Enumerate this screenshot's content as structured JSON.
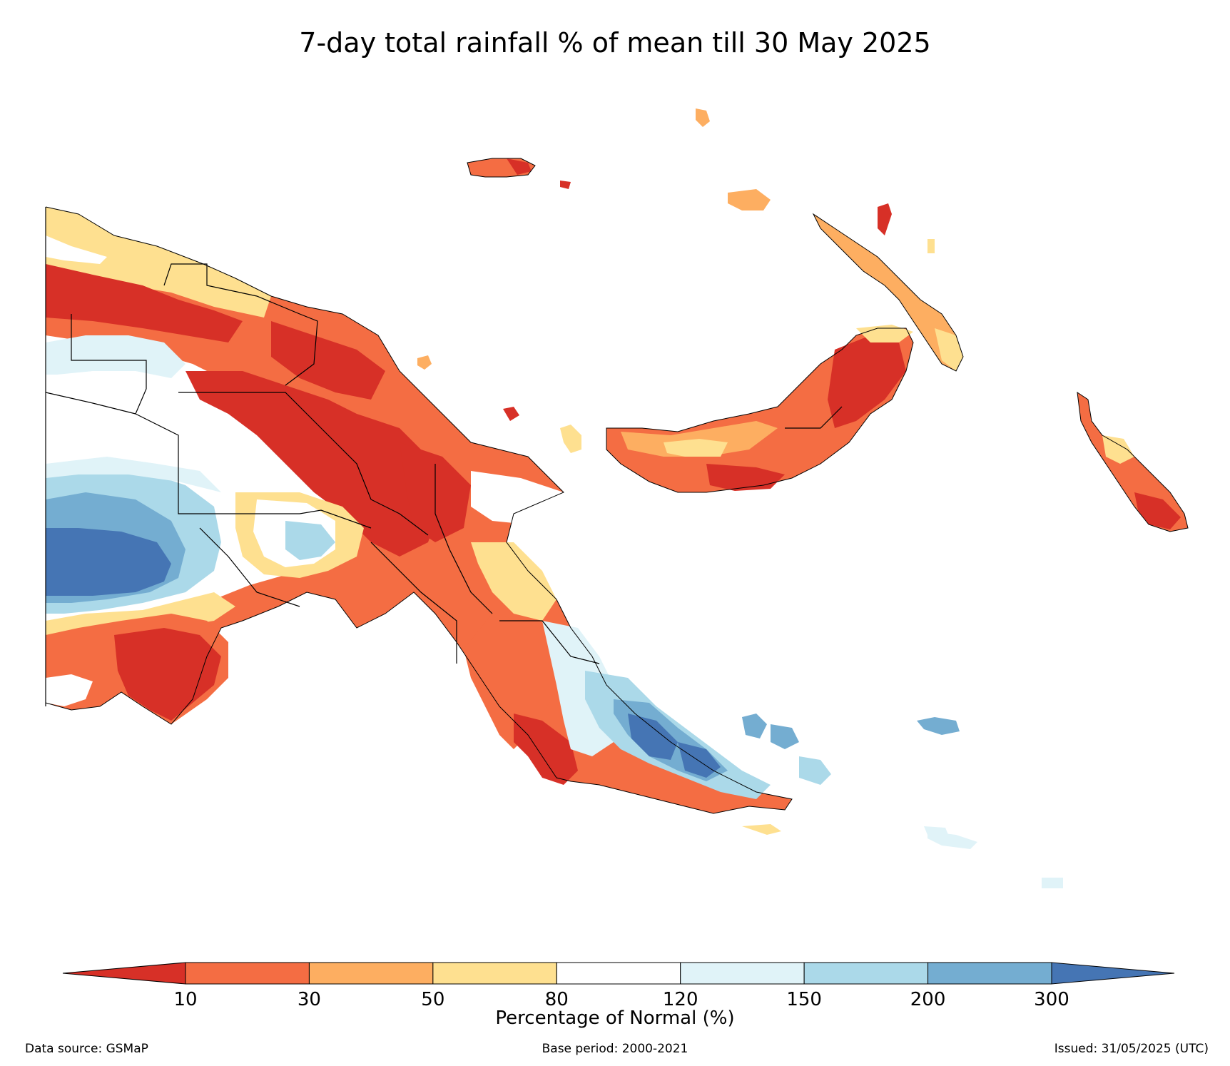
{
  "title": "7-day total rainfall % of mean till 30 May 2025",
  "colorbar": {
    "label": "Percentage of Normal (%)",
    "ticks": [
      "10",
      "30",
      "50",
      "80",
      "120",
      "150",
      "200",
      "300"
    ],
    "colors": {
      "below_10": "#d73027",
      "10_30": "#f46d43",
      "30_50": "#fdae61",
      "50_80": "#fee090",
      "80_120": "#ffffff",
      "120_150": "#e0f3f8",
      "150_200": "#abd9e9",
      "200_300": "#74add1",
      "above_300": "#4575b4"
    }
  },
  "footer": {
    "source": "Data source: GSMaP",
    "base_period": "Base period: 2000-2021",
    "issued": "Issued: 31/05/2025 (UTC)"
  }
}
